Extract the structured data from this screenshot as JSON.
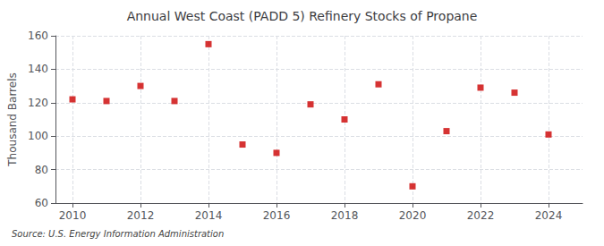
{
  "chart_data": {
    "type": "scatter",
    "title": "Annual West Coast (PADD 5) Refinery Stocks of Propane",
    "ylabel": "Thousand Barrels",
    "annotations": [
      "Source: U.S. Energy Information Administration"
    ],
    "x": [
      2010,
      2011,
      2012,
      2013,
      2014,
      2015,
      2016,
      2017,
      2018,
      2019,
      2020,
      2021,
      2022,
      2023,
      2024
    ],
    "values": [
      122,
      121,
      130,
      121,
      155,
      95,
      90,
      119,
      110,
      131,
      70,
      103,
      129,
      126,
      101
    ],
    "color": "#cc0000",
    "marker": "square",
    "xlim": [
      2009.5,
      2025.0
    ],
    "xticks": [
      2010,
      2012,
      2014,
      2016,
      2018,
      2020,
      2022,
      2024
    ],
    "ylim": [
      60,
      160
    ],
    "yticks": [
      60,
      80,
      100,
      120,
      140,
      160
    ],
    "grid": true
  }
}
